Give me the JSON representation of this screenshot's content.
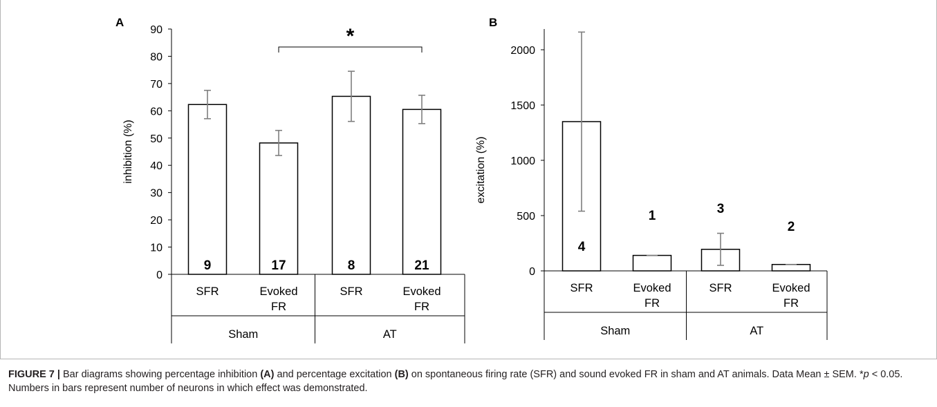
{
  "panels": [
    {
      "panel_label": "A",
      "chart_data": {
        "type": "bar",
        "ylabel": "inhibition (%)",
        "ylim": [
          0,
          90
        ],
        "yticks": [
          0,
          10,
          20,
          30,
          40,
          50,
          60,
          70,
          80,
          90
        ],
        "categories": [
          "SFR",
          "Evoked FR",
          "SFR",
          "Evoked FR"
        ],
        "groups": [
          {
            "name": "Sham",
            "categories": [
              "SFR",
              "Evoked FR"
            ]
          },
          {
            "name": "AT",
            "categories": [
              "SFR",
              "Evoked FR"
            ]
          }
        ],
        "values": [
          62.3,
          48.2,
          65.3,
          60.5
        ],
        "error": [
          5.2,
          4.6,
          9.2,
          5.2
        ],
        "bar_labels": [
          "9",
          "17",
          "8",
          "21"
        ],
        "significance": {
          "from": 1,
          "to": 3,
          "label": "*"
        }
      }
    },
    {
      "panel_label": "B",
      "chart_data": {
        "type": "bar",
        "ylabel": "excitation (%)",
        "ylim": [
          0,
          2000
        ],
        "yticks": [
          0,
          500,
          1000,
          1500,
          2000
        ],
        "categories": [
          "SFR",
          "Evoked FR",
          "SFR",
          "Evoked FR"
        ],
        "groups": [
          {
            "name": "Sham",
            "categories": [
              "SFR",
              "Evoked FR"
            ]
          },
          {
            "name": "AT",
            "categories": [
              "SFR",
              "Evoked FR"
            ]
          }
        ],
        "values": [
          1350,
          140,
          195,
          58
        ],
        "error": [
          810,
          0,
          145,
          0
        ],
        "bar_labels": [
          "4",
          "1",
          "3",
          "2"
        ]
      }
    }
  ],
  "caption": {
    "label": "FIGURE 7 |",
    "text_1": " Bar diagrams showing percentage inhibition ",
    "ref_a": "(A)",
    "text_2": " and percentage excitation ",
    "ref_b": "(B)",
    "text_3": " on spontaneous firing rate (SFR) and sound evoked FR in sham and AT animals. Data Mean ± SEM. *",
    "p_symbol": "p",
    "text_4": " < 0.05. Numbers in bars represent number of neurons in which effect was demonstrated."
  }
}
